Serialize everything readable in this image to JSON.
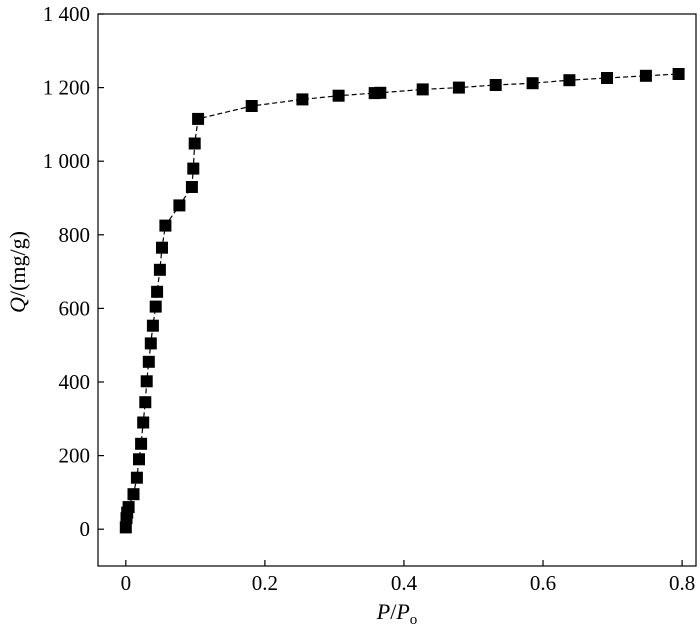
{
  "chart_data": {
    "type": "scatter",
    "title": "",
    "xlabel": {
      "italic": "P",
      "slash": "/",
      "italic2": "P",
      "sub": "o"
    },
    "ylabel": {
      "italic": "Q",
      "rest": "/(mg/g)"
    },
    "xlim": [
      -0.04,
      0.82
    ],
    "ylim": [
      -100,
      1400
    ],
    "x_ticks": [
      {
        "value": 0,
        "label": "0"
      },
      {
        "value": 0.2,
        "label": "0.2"
      },
      {
        "value": 0.4,
        "label": "0.4"
      },
      {
        "value": 0.6,
        "label": "0.6"
      },
      {
        "value": 0.8,
        "label": "0.8"
      }
    ],
    "y_ticks": [
      {
        "value": 0,
        "label": "0"
      },
      {
        "value": 200,
        "label": "200"
      },
      {
        "value": 400,
        "label": "400"
      },
      {
        "value": 600,
        "label": "600"
      },
      {
        "value": 800,
        "label": "800"
      },
      {
        "value": 1000,
        "label": "1 000"
      },
      {
        "value": 1200,
        "label": "1 200"
      },
      {
        "value": 1400,
        "label": "1 400"
      }
    ],
    "grid": false,
    "legend": "none",
    "series": [
      {
        "marker": "square",
        "color": "#000000",
        "line": "dashed",
        "points": [
          [
            0.0,
            5
          ],
          [
            0.001,
            30
          ],
          [
            0.002,
            45
          ],
          [
            0.004,
            60
          ],
          [
            0.011,
            95
          ],
          [
            0.016,
            140
          ],
          [
            0.019,
            190
          ],
          [
            0.022,
            232
          ],
          [
            0.025,
            290
          ],
          [
            0.028,
            345
          ],
          [
            0.03,
            402
          ],
          [
            0.033,
            455
          ],
          [
            0.036,
            505
          ],
          [
            0.039,
            553
          ],
          [
            0.043,
            605
          ],
          [
            0.045,
            645
          ],
          [
            0.049,
            705
          ],
          [
            0.052,
            765
          ],
          [
            0.057,
            825
          ],
          [
            0.077,
            880
          ],
          [
            0.095,
            930
          ],
          [
            0.097,
            980
          ],
          [
            0.099,
            1048
          ],
          [
            0.104,
            1115
          ],
          [
            0.181,
            1150
          ],
          [
            0.254,
            1168
          ],
          [
            0.306,
            1178
          ],
          [
            0.358,
            1185
          ],
          [
            0.366,
            1186
          ],
          [
            0.427,
            1195
          ],
          [
            0.479,
            1200
          ],
          [
            0.532,
            1207
          ],
          [
            0.585,
            1212
          ],
          [
            0.638,
            1220
          ],
          [
            0.692,
            1226
          ],
          [
            0.748,
            1232
          ],
          [
            0.795,
            1237
          ]
        ]
      }
    ]
  }
}
